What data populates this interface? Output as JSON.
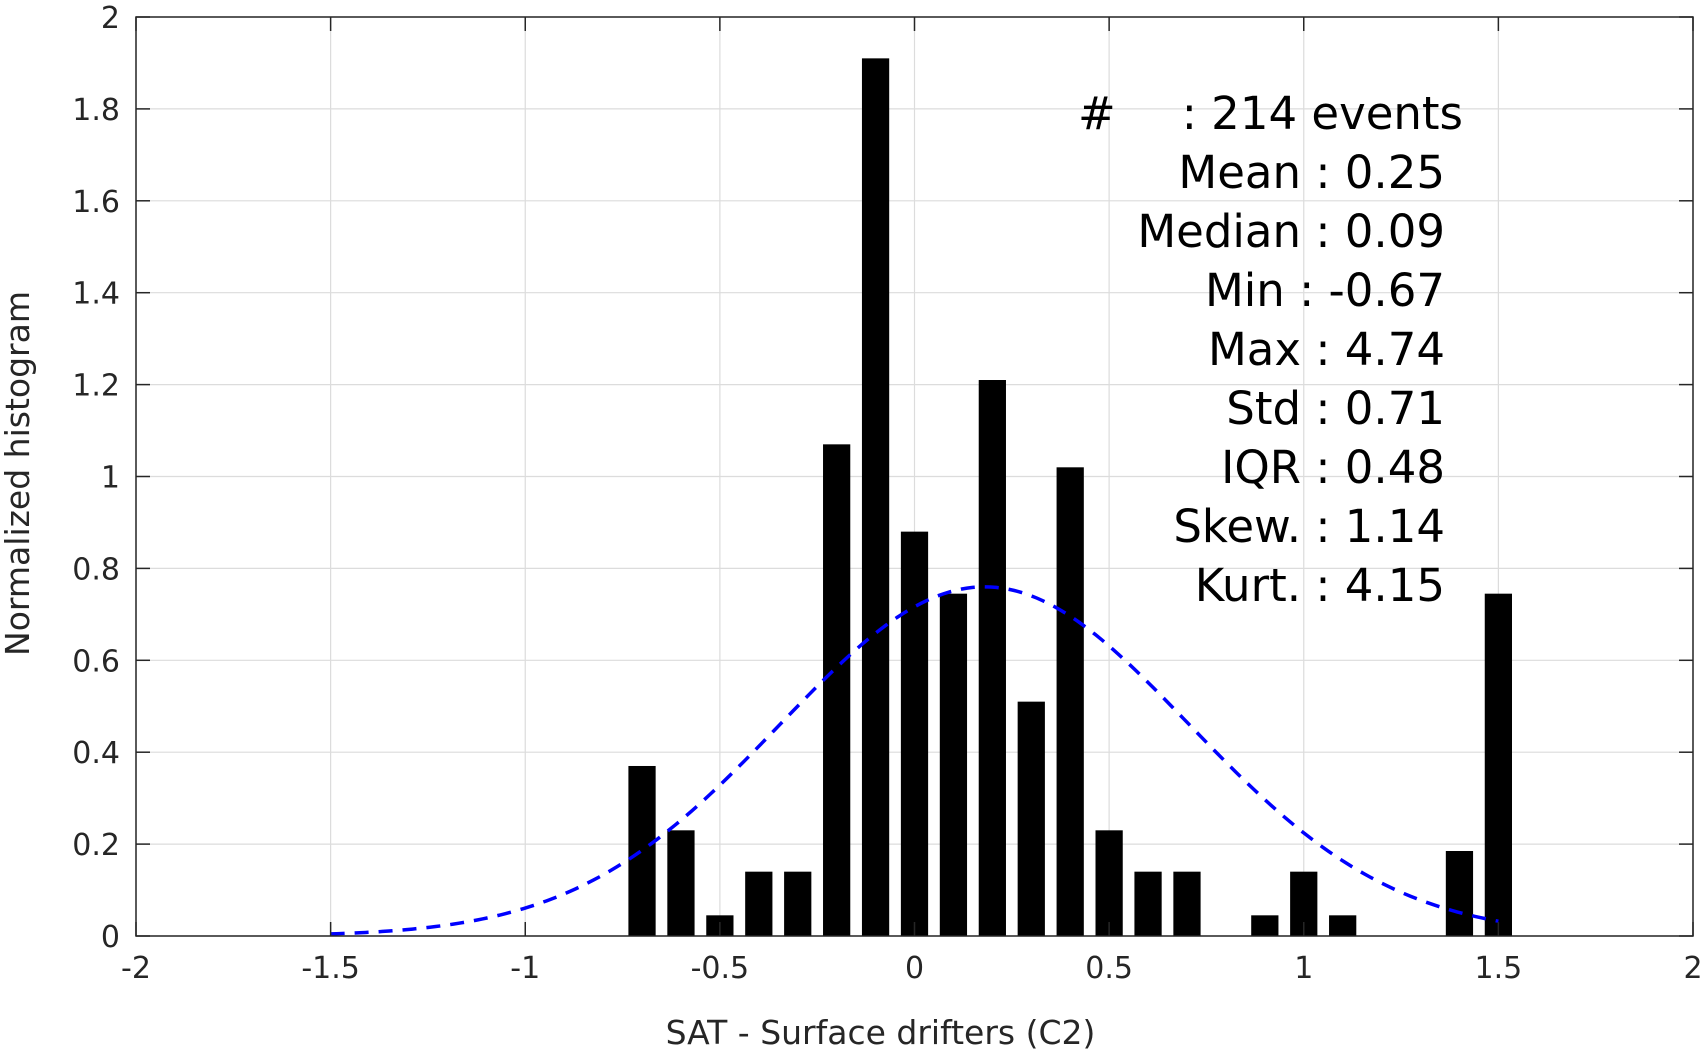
{
  "chart_data": {
    "type": "bar",
    "title": "",
    "xlabel": "SAT - Surface drifters (C2)",
    "ylabel": "Normalized histogram",
    "xlim": [
      -2,
      2
    ],
    "ylim": [
      0,
      2
    ],
    "xticks": [
      -2,
      -1.5,
      -1,
      -0.5,
      0,
      0.5,
      1,
      1.5,
      2
    ],
    "xtick_labels": [
      "-2",
      "-1.5",
      "-1",
      "-0.5",
      "0",
      "0.5",
      "1",
      "1.5",
      "2"
    ],
    "yticks": [
      0,
      0.2,
      0.4,
      0.6,
      0.8,
      1,
      1.2,
      1.4,
      1.6,
      1.8,
      2
    ],
    "ytick_labels": [
      "0",
      "0.2",
      "0.4",
      "0.6",
      "0.8",
      "1",
      "1.2",
      "1.4",
      "1.6",
      "1.8",
      "2"
    ],
    "grid": true,
    "bar_width": 0.07,
    "bar_color": "#000000",
    "bars": [
      {
        "x": -0.7,
        "y": 0.37
      },
      {
        "x": -0.6,
        "y": 0.23
      },
      {
        "x": -0.5,
        "y": 0.045
      },
      {
        "x": -0.4,
        "y": 0.14
      },
      {
        "x": -0.3,
        "y": 0.14
      },
      {
        "x": -0.2,
        "y": 1.07
      },
      {
        "x": -0.1,
        "y": 1.91
      },
      {
        "x": 0.0,
        "y": 0.88
      },
      {
        "x": 0.1,
        "y": 0.745
      },
      {
        "x": 0.2,
        "y": 1.21
      },
      {
        "x": 0.3,
        "y": 0.51
      },
      {
        "x": 0.4,
        "y": 1.02
      },
      {
        "x": 0.5,
        "y": 0.23
      },
      {
        "x": 0.6,
        "y": 0.14
      },
      {
        "x": 0.7,
        "y": 0.14
      },
      {
        "x": 0.9,
        "y": 0.045
      },
      {
        "x": 1.0,
        "y": 0.14
      },
      {
        "x": 1.1,
        "y": 0.045
      },
      {
        "x": 1.4,
        "y": 0.185
      },
      {
        "x": 1.5,
        "y": 0.745
      }
    ],
    "fit_curve": {
      "style": "dashed",
      "color": "#0000ff",
      "distribution": "normal",
      "mean": 0.18,
      "std": 0.525,
      "x_range": [
        -1.5,
        1.5
      ]
    },
    "stats_lines": [
      {
        "label": "#",
        "value": ": 214 events"
      },
      {
        "label": "Mean",
        "value": ": 0.25"
      },
      {
        "label": "Median",
        "value": ": 0.09"
      },
      {
        "label": "Min",
        "value": ": -0.67"
      },
      {
        "label": "Max",
        "value": ": 4.74"
      },
      {
        "label": "Std",
        "value": ": 0.71"
      },
      {
        "label": "IQR",
        "value": ": 0.48"
      },
      {
        "label": "Skew.",
        "value": ": 1.14"
      },
      {
        "label": "Kurt.",
        "value": ": 4.15"
      }
    ]
  }
}
